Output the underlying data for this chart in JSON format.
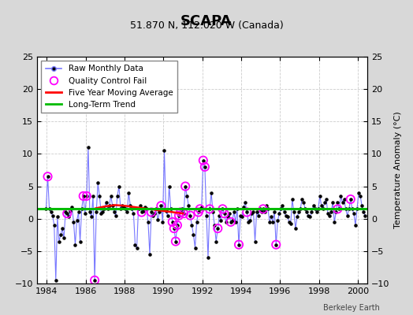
{
  "title": "SCAPA",
  "subtitle": "51.870 N, 112.020 W (Canada)",
  "ylabel_right": "Temperature Anomaly (°C)",
  "credit": "Berkeley Earth",
  "xlim": [
    1983.5,
    2000.5
  ],
  "ylim": [
    -10,
    25
  ],
  "yticks_left": [
    -10,
    -5,
    0,
    5,
    10,
    15,
    20,
    25
  ],
  "yticks_right": [
    -10,
    -5,
    0,
    5,
    10,
    15,
    20,
    25
  ],
  "xticks": [
    1984,
    1986,
    1988,
    1990,
    1992,
    1994,
    1996,
    1998,
    2000
  ],
  "background_color": "#d8d8d8",
  "plot_bg_color": "#ffffff",
  "raw_x": [
    1983.958,
    1984.042,
    1984.125,
    1984.208,
    1984.292,
    1984.375,
    1984.458,
    1984.542,
    1984.625,
    1984.708,
    1984.792,
    1984.875,
    1984.958,
    1985.042,
    1985.125,
    1985.208,
    1985.292,
    1985.375,
    1985.458,
    1985.542,
    1985.625,
    1985.708,
    1985.792,
    1985.875,
    1985.958,
    1986.042,
    1986.125,
    1986.208,
    1986.292,
    1986.375,
    1986.458,
    1986.542,
    1986.625,
    1986.708,
    1986.792,
    1986.875,
    1986.958,
    1987.042,
    1987.125,
    1987.208,
    1987.292,
    1987.375,
    1987.458,
    1987.542,
    1987.625,
    1987.708,
    1987.792,
    1987.875,
    1987.958,
    1988.042,
    1988.125,
    1988.208,
    1988.292,
    1988.375,
    1988.458,
    1988.542,
    1988.625,
    1988.708,
    1988.792,
    1988.875,
    1988.958,
    1989.042,
    1989.125,
    1989.208,
    1989.292,
    1989.375,
    1989.458,
    1989.542,
    1989.625,
    1989.708,
    1989.792,
    1989.875,
    1989.958,
    1990.042,
    1990.125,
    1990.208,
    1990.292,
    1990.375,
    1990.458,
    1990.542,
    1990.625,
    1990.708,
    1990.792,
    1990.875,
    1990.958,
    1991.042,
    1991.125,
    1991.208,
    1991.292,
    1991.375,
    1991.458,
    1991.542,
    1991.625,
    1991.708,
    1991.792,
    1991.875,
    1991.958,
    1992.042,
    1992.125,
    1992.208,
    1992.292,
    1992.375,
    1992.458,
    1992.542,
    1992.625,
    1992.708,
    1992.792,
    1992.875,
    1992.958,
    1993.042,
    1993.125,
    1993.208,
    1993.292,
    1993.375,
    1993.458,
    1993.542,
    1993.625,
    1993.708,
    1993.792,
    1993.875,
    1993.958,
    1994.042,
    1994.125,
    1994.208,
    1994.292,
    1994.375,
    1994.458,
    1994.542,
    1994.625,
    1994.708,
    1994.792,
    1994.875,
    1994.958,
    1995.042,
    1995.125,
    1995.208,
    1995.292,
    1995.375,
    1995.458,
    1995.542,
    1995.625,
    1995.708,
    1995.792,
    1995.875,
    1995.958,
    1996.042,
    1996.125,
    1996.208,
    1996.292,
    1996.375,
    1996.458,
    1996.542,
    1996.625,
    1996.708,
    1996.792,
    1996.875,
    1996.958,
    1997.042,
    1997.125,
    1997.208,
    1997.292,
    1997.375,
    1997.458,
    1997.542,
    1997.625,
    1997.708,
    1997.792,
    1997.875,
    1997.958,
    1998.042,
    1998.125,
    1998.208,
    1998.292,
    1998.375,
    1998.458,
    1998.542,
    1998.625,
    1998.708,
    1998.792,
    1998.875,
    1998.958,
    1999.042,
    1999.125,
    1999.208,
    1999.292,
    1999.375,
    1999.458,
    1999.542,
    1999.625,
    1999.708,
    1999.792,
    1999.875,
    1999.958,
    2000.042,
    2000.125,
    2000.208,
    2000.292,
    2000.375
  ],
  "raw_y": [
    1.5,
    6.5,
    1.5,
    1.0,
    0.5,
    -1.0,
    -9.5,
    0.3,
    -3.5,
    -2.5,
    -1.5,
    -3.0,
    1.0,
    0.8,
    0.3,
    1.2,
    1.8,
    -0.5,
    -4.0,
    -0.3,
    1.0,
    -3.5,
    1.5,
    3.5,
    0.8,
    3.5,
    11.0,
    1.0,
    0.3,
    3.5,
    -9.5,
    1.0,
    5.5,
    3.5,
    0.8,
    1.0,
    1.5,
    2.5,
    1.5,
    2.0,
    3.5,
    2.0,
    1.0,
    0.5,
    3.5,
    5.0,
    1.5,
    2.0,
    1.8,
    1.5,
    1.0,
    4.0,
    2.0,
    1.5,
    0.8,
    -4.0,
    -4.5,
    1.5,
    2.0,
    1.0,
    1.2,
    1.8,
    1.5,
    -0.5,
    -5.5,
    1.0,
    0.5,
    0.8,
    1.5,
    -0.2,
    1.0,
    2.0,
    -0.5,
    10.5,
    1.2,
    0.5,
    5.0,
    1.5,
    -0.5,
    -1.5,
    -3.5,
    -1.0,
    0.5,
    1.0,
    1.5,
    0.8,
    5.0,
    3.5,
    2.0,
    0.5,
    -1.0,
    -2.5,
    -4.5,
    -0.5,
    1.0,
    1.5,
    1.8,
    9.0,
    8.0,
    0.5,
    -6.0,
    1.5,
    4.0,
    1.0,
    -1.0,
    -3.5,
    -1.5,
    0.5,
    -0.3,
    1.5,
    0.8,
    -0.5,
    0.3,
    0.8,
    -0.5,
    -0.3,
    1.0,
    -0.5,
    1.5,
    -4.0,
    0.5,
    0.3,
    1.8,
    2.5,
    1.0,
    -0.5,
    -0.3,
    0.8,
    1.0,
    -3.5,
    1.0,
    0.5,
    1.5,
    1.0,
    1.5,
    1.0,
    2.0,
    1.5,
    -0.5,
    0.3,
    -0.5,
    1.0,
    -4.0,
    -0.3,
    0.8,
    1.5,
    2.0,
    1.0,
    0.5,
    0.3,
    -0.5,
    -0.8,
    3.0,
    1.0,
    -1.5,
    0.3,
    1.0,
    1.5,
    3.0,
    2.5,
    1.5,
    1.0,
    0.5,
    0.3,
    1.0,
    2.0,
    1.5,
    1.0,
    1.5,
    3.5,
    2.0,
    1.5,
    2.5,
    3.0,
    0.8,
    0.5,
    1.0,
    2.5,
    -0.5,
    1.0,
    2.5,
    1.5,
    3.5,
    2.5,
    3.0,
    1.5,
    0.5,
    1.5,
    3.0,
    1.5,
    0.8,
    -1.0,
    1.5,
    4.0,
    3.5,
    2.0,
    1.0,
    0.5
  ],
  "qc_fail_x": [
    1984.042,
    1985.042,
    1985.875,
    1986.042,
    1986.458,
    1988.875,
    1989.375,
    1989.875,
    1990.458,
    1990.542,
    1990.625,
    1990.708,
    1990.792,
    1990.875,
    1991.042,
    1991.125,
    1991.375,
    1991.792,
    1991.875,
    1992.042,
    1992.125,
    1992.375,
    1992.792,
    1993.042,
    1993.125,
    1993.458,
    1993.875,
    1994.292,
    1995.125,
    1995.792,
    1998.958,
    1999.625
  ],
  "qc_fail_y": [
    6.5,
    0.8,
    3.5,
    3.5,
    -9.5,
    1.0,
    1.0,
    2.0,
    -0.5,
    -1.5,
    -3.5,
    -1.0,
    0.5,
    1.0,
    0.8,
    5.0,
    0.5,
    1.0,
    1.5,
    9.0,
    8.0,
    1.5,
    -1.5,
    1.5,
    0.8,
    -0.5,
    -4.0,
    1.0,
    1.5,
    -4.0,
    1.5,
    3.0
  ],
  "moving_avg_x": [
    1986.5,
    1987.0,
    1987.5,
    1988.0,
    1988.5,
    1989.0,
    1989.5,
    1990.0,
    1990.5,
    1991.0
  ],
  "moving_avg_y": [
    1.6,
    1.9,
    2.1,
    2.0,
    1.8,
    1.6,
    1.4,
    1.2,
    1.0,
    0.8
  ],
  "trend_x": [
    1983.5,
    2000.5
  ],
  "trend_y": [
    1.5,
    1.5
  ],
  "raw_line_color": "#7777ff",
  "raw_marker_color": "#000000",
  "qc_color": "#ff00ff",
  "moving_avg_color": "#ff0000",
  "trend_color": "#00bb00",
  "grid_color": "#cccccc",
  "grid_linestyle": "--"
}
